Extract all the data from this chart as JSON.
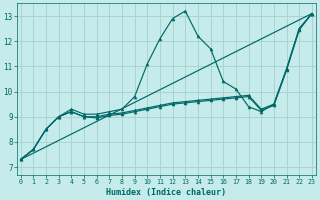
{
  "xlabel": "Humidex (Indice chaleur)",
  "bg_color": "#c5ecea",
  "grid_color": "#aad4d0",
  "line_color": "#006868",
  "x_ticks": [
    0,
    1,
    2,
    3,
    4,
    5,
    6,
    7,
    8,
    9,
    10,
    11,
    12,
    13,
    14,
    15,
    16,
    17,
    18,
    19,
    20,
    21,
    22,
    23
  ],
  "y_ticks": [
    7,
    8,
    9,
    10,
    11,
    12,
    13
  ],
  "xlim": [
    -0.3,
    23.3
  ],
  "ylim": [
    6.7,
    13.5
  ],
  "line1_y": [
    7.3,
    7.7,
    8.5,
    9.0,
    9.3,
    9.1,
    9.1,
    9.2,
    9.3,
    9.8,
    11.1,
    12.1,
    12.9,
    13.2,
    12.2,
    11.7,
    10.4,
    10.1,
    9.4,
    9.2,
    9.5,
    10.9,
    12.5,
    13.1
  ],
  "line2_y": [
    7.3,
    7.7,
    8.5,
    9.0,
    9.2,
    9.0,
    9.0,
    9.1,
    9.15,
    9.25,
    9.35,
    9.45,
    9.55,
    9.6,
    9.65,
    9.7,
    9.75,
    9.8,
    9.85,
    9.3,
    9.5,
    10.9,
    12.5,
    13.1
  ],
  "line3_y": [
    7.3,
    7.7,
    8.5,
    9.0,
    9.2,
    9.0,
    8.95,
    9.05,
    9.1,
    9.2,
    9.3,
    9.4,
    9.5,
    9.55,
    9.6,
    9.65,
    9.7,
    9.75,
    9.8,
    9.25,
    9.45,
    10.85,
    12.45,
    13.1
  ]
}
